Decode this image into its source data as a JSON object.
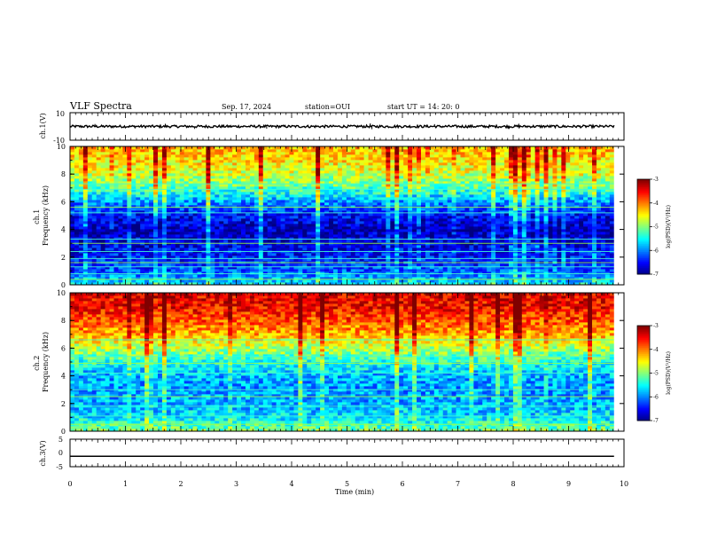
{
  "header": {
    "title": "VLF Spectra",
    "date": "Sep. 17, 2024",
    "station": "station=OUI",
    "start": "start  UT =   14: 20: 0"
  },
  "chart_data": [
    {
      "type": "line",
      "id": "ch1-waveform",
      "ylabel": "ch.1(V)",
      "ylim": [
        -10,
        10
      ],
      "yticks": [
        "10",
        "-10"
      ],
      "xlim": [
        0,
        10
      ],
      "x_unit": "min",
      "data_extent": [
        0,
        9.82
      ],
      "signal": "noise waveform approx ±1 V with spikes",
      "spikes": [
        {
          "x": 0.45,
          "y": 1.8
        },
        {
          "x": 1.72,
          "y": 1.9
        },
        {
          "x": 2.25,
          "y": -1.8
        },
        {
          "x": 3.55,
          "y": -1.6
        },
        {
          "x": 5.42,
          "y": 2.2
        },
        {
          "x": 5.45,
          "y": -2.0
        },
        {
          "x": 6.58,
          "y": 1.7
        },
        {
          "x": 7.92,
          "y": -1.9
        },
        {
          "x": 8.1,
          "y": 2.0
        }
      ]
    },
    {
      "type": "heatmap",
      "id": "ch1-spectrogram",
      "ylabel": "ch.1\nFrequency (kHz)",
      "ylim": [
        0,
        10
      ],
      "yticks": [
        "0",
        "2",
        "4",
        "6",
        "8",
        "10"
      ],
      "xlim": [
        0,
        10
      ],
      "data_extent": [
        0,
        9.82
      ],
      "colorbar": {
        "label": "log(PSD)(V²/Hz)",
        "range": [
          -7,
          -3
        ],
        "ticks": [
          "-3",
          "-4",
          "-5",
          "-6",
          "-7"
        ]
      },
      "level_profile": [
        {
          "f": 0,
          "level": -5.5
        },
        {
          "f": 1,
          "level": -6.2
        },
        {
          "f": 2,
          "level": -6.4
        },
        {
          "f": 3,
          "level": -6.6
        },
        {
          "f": 4,
          "level": -6.8
        },
        {
          "f": 5,
          "level": -6.5
        },
        {
          "f": 6,
          "level": -5.9
        },
        {
          "f": 7,
          "level": -5.2
        },
        {
          "f": 8,
          "level": -4.7
        },
        {
          "f": 9,
          "level": -4.4
        },
        {
          "f": 10,
          "level": -4.2
        }
      ],
      "tones_khz": [
        0.4,
        0.8,
        1.3,
        1.6,
        1.9,
        2.4,
        3.0,
        3.3,
        5.2,
        5.6,
        6.9,
        7.3
      ],
      "colorbar_colors": [
        "#800000",
        "#ff0000",
        "#ff8000",
        "#ffff00",
        "#80ff00",
        "#00ff80",
        "#00ffff",
        "#0080ff",
        "#0000ff",
        "#000080"
      ]
    },
    {
      "type": "heatmap",
      "id": "ch2-spectrogram",
      "ylabel": "ch.2\nFrequency (kHz)",
      "ylim": [
        0,
        10
      ],
      "yticks": [
        "0",
        "2",
        "4",
        "6",
        "8",
        "10"
      ],
      "xlim": [
        0,
        10
      ],
      "data_extent": [
        0,
        9.82
      ],
      "colorbar": {
        "label": "log(PSD)(V²/Hz)",
        "range": [
          -7,
          -3
        ],
        "ticks": [
          "-3",
          "-4",
          "-5",
          "-6",
          "-7"
        ]
      },
      "level_profile": [
        {
          "f": 0,
          "level": -5.0
        },
        {
          "f": 1,
          "level": -5.6
        },
        {
          "f": 2,
          "level": -5.8
        },
        {
          "f": 3,
          "level": -5.9
        },
        {
          "f": 4,
          "level": -5.8
        },
        {
          "f": 5,
          "level": -5.4
        },
        {
          "f": 6,
          "level": -4.8
        },
        {
          "f": 7,
          "level": -4.2
        },
        {
          "f": 8,
          "level": -3.8
        },
        {
          "f": 9,
          "level": -3.5
        },
        {
          "f": 10,
          "level": -3.4
        }
      ],
      "tones_khz": [
        0.5,
        1.1,
        1.8,
        2.5,
        3.0,
        4.2,
        4.9,
        5.4,
        6.6
      ],
      "colorbar_colors": [
        "#800000",
        "#ff0000",
        "#ff8000",
        "#ffff00",
        "#80ff00",
        "#00ff80",
        "#00ffff",
        "#0080ff",
        "#0000ff",
        "#000080"
      ]
    },
    {
      "type": "line",
      "id": "ch3-waveform",
      "ylabel": "ch.3(V)",
      "ylim": [
        -5,
        5
      ],
      "yticks": [
        "5",
        "0",
        "-5"
      ],
      "xlim": [
        0,
        10
      ],
      "data_extent": [
        0,
        9.82
      ],
      "constant_value": -1.2
    }
  ],
  "xaxis": {
    "label": "Time (min)",
    "ticks": [
      "0",
      "1",
      "2",
      "3",
      "4",
      "5",
      "6",
      "7",
      "8",
      "9",
      "10"
    ]
  }
}
